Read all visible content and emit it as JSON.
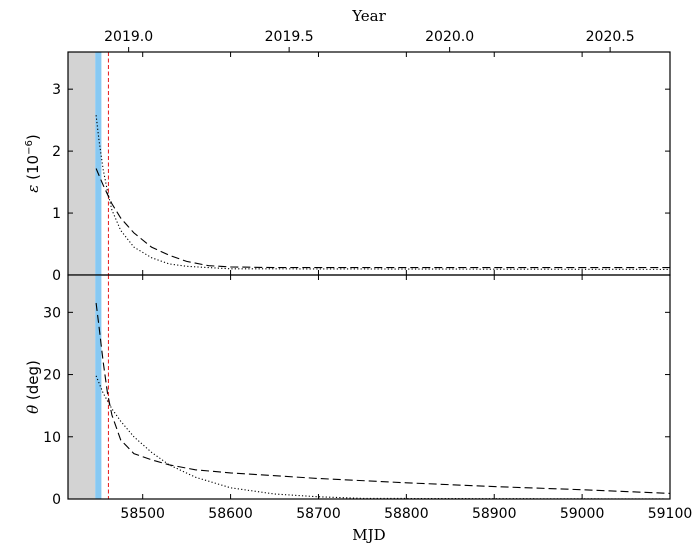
{
  "chart_data": {
    "type": "line",
    "top_axis": {
      "label": "Year",
      "ticks": [
        {
          "value": 2019.0,
          "label": "2019.0"
        },
        {
          "value": 2019.5,
          "label": "2019.5"
        },
        {
          "value": 2020.0,
          "label": "2020.0"
        },
        {
          "value": 2020.5,
          "label": "2020.5"
        }
      ]
    },
    "xlabel": "MJD",
    "xlim": [
      58415,
      59100
    ],
    "xticks": [
      58500,
      58600,
      58700,
      58800,
      58900,
      59000,
      59100
    ],
    "shaded_gray_region": [
      58415,
      58446
    ],
    "blue_band": [
      58446,
      58453
    ],
    "vline_red_dashed": 58461,
    "panels": [
      {
        "ylabel_symbol": "ε",
        "ylabel_rest": " (10",
        "ylabel_sup": "−6",
        "ylabel_close": ")",
        "ylim": [
          0,
          3.6
        ],
        "yticks": [
          0,
          1,
          2,
          3
        ],
        "series": [
          {
            "style": "dashed",
            "x": [
              58447,
              58455,
              58465,
              58475,
              58490,
              58510,
              58530,
              58550,
              58575,
              58600,
              58650,
              58700,
              59100
            ],
            "y": [
              1.72,
              1.45,
              1.15,
              0.92,
              0.68,
              0.45,
              0.32,
              0.22,
              0.15,
              0.13,
              0.12,
              0.12,
              0.12
            ]
          },
          {
            "style": "dotted",
            "x": [
              58447,
              58450,
              58455,
              58460,
              58465,
              58475,
              58490,
              58510,
              58530,
              58550,
              58575,
              58600,
              59100
            ],
            "y": [
              2.58,
              2.2,
              1.7,
              1.35,
              1.05,
              0.72,
              0.45,
              0.28,
              0.18,
              0.14,
              0.12,
              0.1,
              0.09
            ]
          }
        ]
      },
      {
        "ylabel_symbol": "θ",
        "ylabel_rest": " (deg)",
        "ylim": [
          0,
          36
        ],
        "yticks": [
          0,
          10,
          20,
          30
        ],
        "series": [
          {
            "style": "dashed",
            "x": [
              58447,
              58450,
              58455,
              58460,
              58465,
              58475,
              58490,
              58510,
              58530,
              58560,
              58600,
              58700,
              58800,
              58900,
              59000,
              59100
            ],
            "y": [
              31.5,
              28,
              22,
              17,
              13.5,
              9.5,
              7.3,
              6.3,
              5.5,
              4.7,
              4.2,
              3.3,
              2.6,
              2.0,
              1.5,
              0.9
            ]
          },
          {
            "style": "dotted",
            "x": [
              58447,
              58455,
              58465,
              58475,
              58490,
              58510,
              58530,
              58560,
              58600,
              58650,
              58700,
              58750,
              59100
            ],
            "y": [
              19.8,
              17,
              14.5,
              12.5,
              10,
              7.5,
              5.5,
              3.5,
              1.8,
              0.8,
              0.35,
              0.1,
              0.0
            ]
          }
        ]
      }
    ]
  }
}
